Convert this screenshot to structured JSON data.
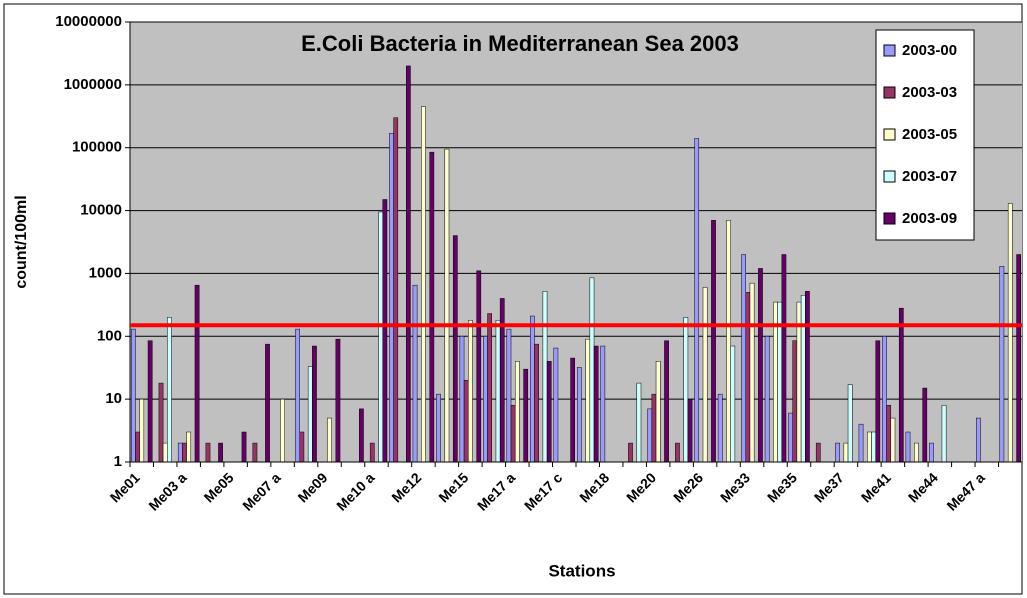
{
  "chart_data": {
    "type": "bar",
    "title": "E.Coli Bacteria in Mediterranean Sea 2003",
    "xlabel": "Stations",
    "ylabel": "count/100ml",
    "log_scale": true,
    "grid": true,
    "legend": "upper right",
    "ylim": [
      1,
      10000000
    ],
    "yticks": [
      1,
      10,
      100,
      1000,
      10000,
      100000,
      1000000,
      10000000
    ],
    "reference_line": {
      "value": 150,
      "color": "#ff0000"
    },
    "categories": [
      "Me01",
      null,
      "Me03 a",
      null,
      "Me05",
      null,
      "Me07 a",
      null,
      "Me09",
      null,
      "Me10 a",
      null,
      "Me12",
      null,
      "Me15",
      null,
      "Me17 a",
      null,
      "Me17 c",
      null,
      "Me18",
      null,
      "Me20",
      null,
      "Me26",
      null,
      "Me33",
      null,
      "Me35",
      null,
      "Me37",
      null,
      "Me41",
      null,
      "Me44",
      null,
      "Me47 a",
      null
    ],
    "series": [
      {
        "name": "2003-00",
        "color": "#9999ff",
        "values": [
          130,
          null,
          2,
          null,
          null,
          null,
          null,
          130,
          null,
          null,
          null,
          170000,
          650,
          12,
          100,
          100,
          130,
          210,
          65,
          32,
          70,
          null,
          7,
          null,
          140000,
          12,
          2000,
          100,
          6,
          null,
          2,
          4,
          100,
          3,
          2,
          null,
          5,
          1300
        ]
      },
      {
        "name": "2003-03",
        "color": "#993366",
        "values": [
          3,
          18,
          2,
          2,
          null,
          2,
          null,
          3,
          null,
          null,
          2,
          300000,
          null,
          null,
          20,
          230,
          8,
          75,
          null,
          null,
          null,
          2,
          12,
          2,
          null,
          null,
          500,
          null,
          85,
          2,
          null,
          null,
          8,
          null,
          null,
          null,
          null,
          null
        ]
      },
      {
        "name": "2003-05",
        "color": "#ffffcc",
        "values": [
          10,
          2,
          3,
          null,
          null,
          null,
          10,
          null,
          5,
          null,
          null,
          null,
          450000,
          95000,
          180,
          null,
          40,
          null,
          null,
          90,
          null,
          null,
          40,
          null,
          600,
          7000,
          700,
          350,
          350,
          null,
          2,
          3,
          5,
          2,
          null,
          null,
          null,
          13000
        ]
      },
      {
        "name": "2003-07",
        "color": "#ccffff",
        "values": [
          null,
          200,
          null,
          null,
          null,
          null,
          null,
          33,
          null,
          null,
          9500,
          null,
          null,
          null,
          null,
          180,
          null,
          520,
          null,
          850,
          null,
          18,
          null,
          200,
          null,
          70,
          null,
          350,
          450,
          null,
          17,
          3,
          null,
          null,
          8,
          null,
          null,
          null
        ]
      },
      {
        "name": "2003-09",
        "color": "#660066",
        "values": [
          85,
          null,
          650,
          2,
          3,
          75,
          null,
          70,
          90,
          7,
          15000,
          2000000,
          85000,
          4000,
          1100,
          400,
          30,
          40,
          45,
          70,
          null,
          null,
          85,
          10,
          7000,
          null,
          1200,
          2000,
          520,
          null,
          null,
          85,
          280,
          15,
          null,
          null,
          null,
          2000
        ]
      }
    ]
  }
}
